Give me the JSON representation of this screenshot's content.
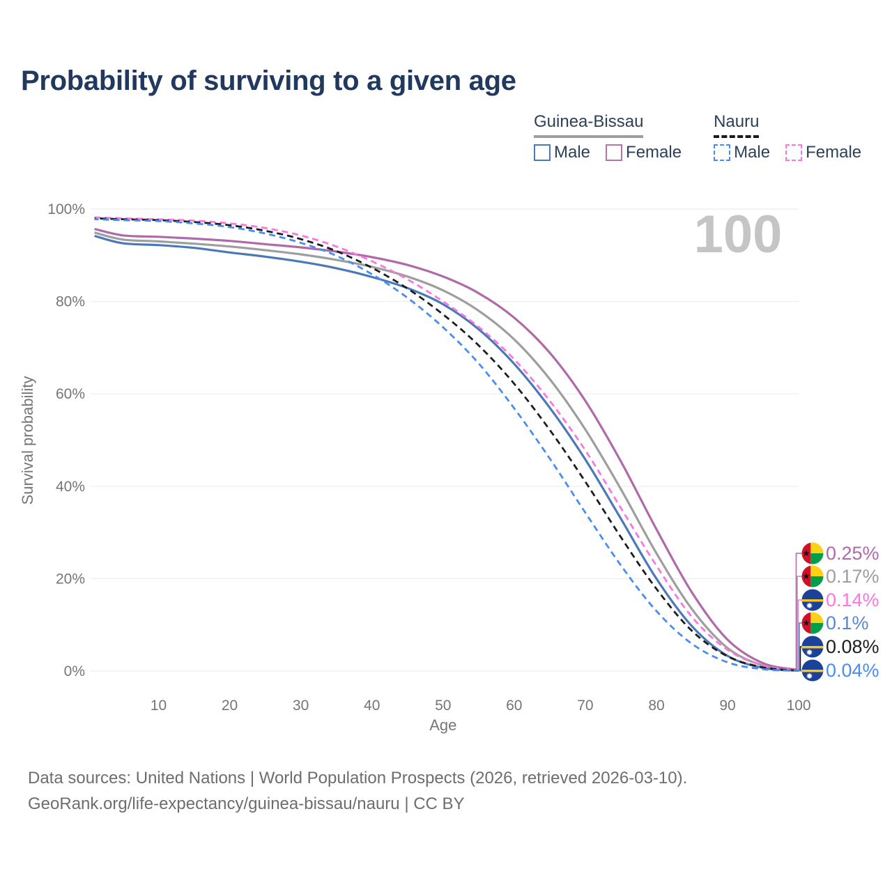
{
  "title": "Probability of surviving to a given age",
  "watermark": "100",
  "legend": {
    "groups": [
      {
        "label": "Guinea-Bissau",
        "line_style": "solid",
        "underline_color": "#9e9e9e",
        "items": [
          {
            "label": "Male",
            "color": "#4b79b7",
            "dashed": false
          },
          {
            "label": "Female",
            "color": "#b473ae",
            "dashed": false
          }
        ]
      },
      {
        "label": "Nauru",
        "line_style": "dashed",
        "underline_color": "#1a1a1a",
        "items": [
          {
            "label": "Male",
            "color": "#4a8df0",
            "dashed": true
          },
          {
            "label": "Female",
            "color": "#fb76e1",
            "dashed": true
          }
        ]
      }
    ]
  },
  "axes": {
    "y_label": "Survival probability",
    "x_label": "Age",
    "y_ticks": [
      {
        "label": "0%",
        "value": 0
      },
      {
        "label": "20%",
        "value": 20
      },
      {
        "label": "40%",
        "value": 40
      },
      {
        "label": "60%",
        "value": 60
      },
      {
        "label": "80%",
        "value": 80
      },
      {
        "label": "100%",
        "value": 100
      }
    ],
    "x_ticks": [
      10,
      20,
      30,
      40,
      50,
      60,
      70,
      80,
      90,
      100
    ]
  },
  "end_labels": [
    {
      "value": "0.25%",
      "series": "Guinea-Bissau Female",
      "flag": "guinea-bissau",
      "color": "#b06aab"
    },
    {
      "value": "0.17%",
      "series": "Guinea-Bissau Both sexes",
      "flag": "guinea-bissau",
      "color": "#9e9e9e"
    },
    {
      "value": "0.14%",
      "series": "Nauru Female",
      "flag": "nauru",
      "color": "#fb76e1"
    },
    {
      "value": "0.1%",
      "series": "Guinea-Bissau Male",
      "flag": "guinea-bissau",
      "color": "#5d87cd"
    },
    {
      "value": "0.08%",
      "series": "Nauru Both sexes",
      "flag": "nauru",
      "color": "#1d1d1d"
    },
    {
      "value": "0.04%",
      "series": "Nauru Male",
      "flag": "nauru",
      "color": "#4a8df0"
    }
  ],
  "footer": {
    "line1": "Data sources: United Nations | World Population Prospects (2026, retrieved 2026-03-10).",
    "line2": "GeoRank.org/life-expectancy/guinea-bissau/nauru | CC BY"
  },
  "theme": {
    "grid_color": "#ededed",
    "axis_text_color": "#757575",
    "watermark_color": "#c5c5c5",
    "flag_guinea_bissau": {
      "red": "#ce1126",
      "yellow": "#fcd116",
      "green": "#009e49",
      "star": "#111111"
    },
    "flag_nauru": {
      "blue": "#1b4298",
      "yellow": "#ffc61e",
      "star": "#ffffff"
    }
  },
  "chart_data": {
    "type": "line",
    "title": "Probability of surviving to a given age",
    "xlabel": "Age",
    "ylabel": "Survival probability",
    "xlim": [
      0,
      100
    ],
    "ylim": [
      0,
      100
    ],
    "grid": "horizontal",
    "legend_position": "top-right",
    "x": [
      1,
      5,
      10,
      15,
      20,
      25,
      30,
      35,
      40,
      45,
      50,
      55,
      60,
      65,
      70,
      75,
      80,
      85,
      90,
      95,
      100
    ],
    "series": [
      {
        "id": "guinea-bissau-total",
        "name": "Guinea-Bissau Both sexes",
        "country": "Guinea-Bissau",
        "sex": "Both",
        "color": "#9e9e9e",
        "dashed": false,
        "end_label": "0.17%",
        "values": [
          94.9,
          93.4,
          93.0,
          92.5,
          91.9,
          91.1,
          90.2,
          89.0,
          87.5,
          85.4,
          82.4,
          78.0,
          71.8,
          63.2,
          52.3,
          39.4,
          25.5,
          13.4,
          5.0,
          1.2,
          0.17
        ]
      },
      {
        "id": "guinea-bissau-male",
        "name": "Guinea-Bissau Male",
        "country": "Guinea-Bissau",
        "sex": "Male",
        "color": "#4b79b7",
        "dashed": false,
        "end_label": "0.1%",
        "values": [
          94.2,
          92.6,
          92.2,
          91.6,
          90.6,
          89.7,
          88.6,
          87.2,
          85.3,
          82.9,
          79.4,
          74.0,
          66.5,
          57.0,
          45.8,
          33.0,
          20.0,
          9.7,
          3.3,
          0.7,
          0.1
        ]
      },
      {
        "id": "guinea-bissau-female",
        "name": "Guinea-Bissau Female",
        "country": "Guinea-Bissau",
        "sex": "Female",
        "color": "#b069a9",
        "dashed": false,
        "end_label": "0.25%",
        "values": [
          95.7,
          94.3,
          94.0,
          93.6,
          93.1,
          92.4,
          91.7,
          90.8,
          89.6,
          87.9,
          85.4,
          81.8,
          76.5,
          68.9,
          58.5,
          45.4,
          30.7,
          17.0,
          6.8,
          1.7,
          0.25
        ]
      },
      {
        "id": "nauru-female",
        "name": "Nauru Female",
        "country": "Nauru",
        "sex": "Female",
        "color": "#fb76e1",
        "dashed": true,
        "end_label": "0.14%",
        "values": [
          98.2,
          98.0,
          97.8,
          97.5,
          96.9,
          95.9,
          94.3,
          91.9,
          88.7,
          84.8,
          80.0,
          74.5,
          67.5,
          58.5,
          47.8,
          35.3,
          22.8,
          11.7,
          4.6,
          1.2,
          0.14
        ]
      },
      {
        "id": "nauru-total",
        "name": "Nauru Both sexes",
        "country": "Nauru",
        "sex": "Both",
        "color": "#1d1d1d",
        "dashed": true,
        "end_label": "0.08%",
        "values": [
          98.0,
          97.8,
          97.6,
          97.2,
          96.5,
          95.3,
          93.5,
          90.9,
          87.3,
          82.8,
          77.2,
          70.5,
          62.2,
          52.2,
          41.0,
          29.0,
          17.8,
          8.7,
          3.2,
          0.8,
          0.08
        ]
      },
      {
        "id": "nauru-male",
        "name": "Nauru Male",
        "country": "Nauru",
        "sex": "Male",
        "color": "#4a8df0",
        "dashed": true,
        "end_label": "0.04%",
        "values": [
          97.8,
          97.6,
          97.4,
          96.9,
          96.1,
          94.7,
          92.7,
          89.9,
          85.9,
          80.8,
          74.4,
          66.6,
          56.9,
          46.0,
          34.3,
          22.9,
          13.0,
          5.9,
          1.9,
          0.4,
          0.04
        ]
      }
    ]
  }
}
